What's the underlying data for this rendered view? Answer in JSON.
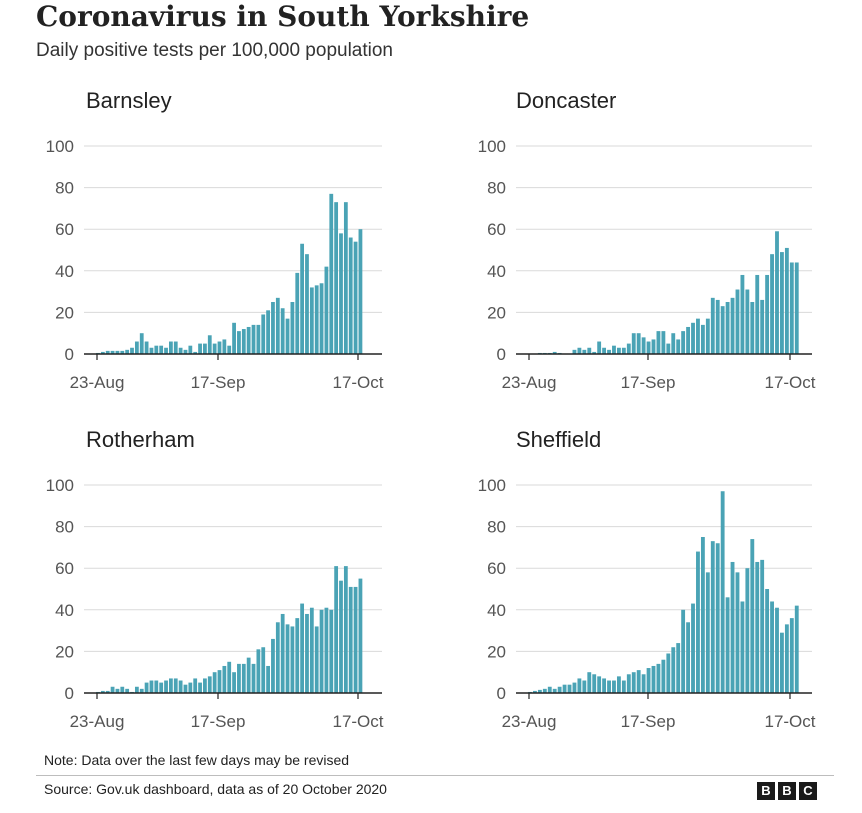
{
  "title": "Coronavirus in South Yorkshire",
  "subtitle": "Daily positive tests per 100,000 population",
  "note": "Note: Data over the last few days may be revised",
  "source": "Source: Gov.uk dashboard, data as of 20 October 2020",
  "logo": [
    "B",
    "B",
    "C"
  ],
  "colors": {
    "bar": "#4aa3b5",
    "grid": "#dadada",
    "axis": "#222222",
    "text": "#555555"
  },
  "chart_data": [
    {
      "type": "bar",
      "title": "Barnsley",
      "ylim": [
        0,
        100
      ],
      "yticks": [
        0,
        20,
        40,
        60,
        80,
        100
      ],
      "x_tick_labels": [
        "23-Aug",
        "17-Sep",
        "17-Oct"
      ],
      "x_tick_days": [
        0,
        25,
        55
      ],
      "first_day": "23-Aug",
      "values": [
        0.5,
        1,
        1.5,
        1.5,
        1.5,
        1.5,
        2,
        3,
        6,
        10,
        6,
        3,
        4,
        4,
        3,
        6,
        6,
        3,
        2,
        4,
        1,
        5,
        5,
        9,
        5,
        6,
        7,
        4,
        15,
        11,
        12,
        13,
        14,
        14,
        19,
        21,
        25,
        27,
        22,
        17,
        25,
        39,
        53,
        48,
        32,
        33,
        34,
        42,
        77,
        73,
        58,
        73,
        56,
        54,
        60
      ]
    },
    {
      "type": "bar",
      "title": "Doncaster",
      "ylim": [
        0,
        100
      ],
      "yticks": [
        0,
        20,
        40,
        60,
        80,
        100
      ],
      "x_tick_labels": [
        "23-Aug",
        "17-Sep",
        "17-Oct"
      ],
      "x_tick_days": [
        0,
        25,
        55
      ],
      "first_day": "23-Aug",
      "values": [
        0,
        0,
        0.5,
        0.5,
        0.5,
        1,
        0.5,
        0,
        0,
        2,
        3,
        2,
        3,
        1,
        6,
        3,
        2,
        4,
        3,
        3,
        5,
        10,
        10,
        8,
        6,
        7,
        11,
        11,
        5,
        10,
        7,
        11,
        13,
        15,
        17,
        14,
        17,
        27,
        26,
        23,
        25,
        27,
        31,
        38,
        31,
        25,
        38,
        26,
        38,
        48,
        59,
        49,
        51,
        44,
        44
      ]
    },
    {
      "type": "bar",
      "title": "Rotherham",
      "ylim": [
        0,
        100
      ],
      "yticks": [
        0,
        20,
        40,
        60,
        80,
        100
      ],
      "x_tick_labels": [
        "23-Aug",
        "17-Sep",
        "17-Oct"
      ],
      "x_tick_days": [
        0,
        25,
        55
      ],
      "first_day": "23-Aug",
      "values": [
        0.5,
        1,
        1,
        3,
        2,
        3,
        2,
        0.5,
        3,
        2,
        5,
        6,
        6,
        5,
        6,
        7,
        7,
        6,
        4,
        5,
        7,
        5,
        7,
        8,
        10,
        11,
        13,
        15,
        10,
        14,
        14,
        17,
        14,
        21,
        22,
        13,
        26,
        34,
        38,
        33,
        32,
        36,
        43,
        38,
        41,
        32,
        40,
        41,
        40,
        61,
        54,
        61,
        51,
        51,
        55
      ]
    },
    {
      "type": "bar",
      "title": "Sheffield",
      "ylim": [
        0,
        100
      ],
      "yticks": [
        0,
        20,
        40,
        60,
        80,
        100
      ],
      "x_tick_labels": [
        "23-Aug",
        "17-Sep",
        "17-Oct"
      ],
      "x_tick_days": [
        0,
        25,
        55
      ],
      "first_day": "23-Aug",
      "values": [
        0.5,
        1,
        1.5,
        2,
        3,
        2,
        3,
        4,
        4,
        5,
        7,
        6,
        10,
        9,
        8,
        7,
        6,
        6,
        8,
        6,
        9,
        10,
        11,
        9,
        12,
        13,
        14,
        16,
        19,
        22,
        24,
        40,
        34,
        43,
        68,
        75,
        58,
        73,
        72,
        97,
        46,
        63,
        58,
        44,
        60,
        74,
        63,
        64,
        50,
        44,
        41,
        29,
        33,
        36,
        42
      ]
    }
  ]
}
